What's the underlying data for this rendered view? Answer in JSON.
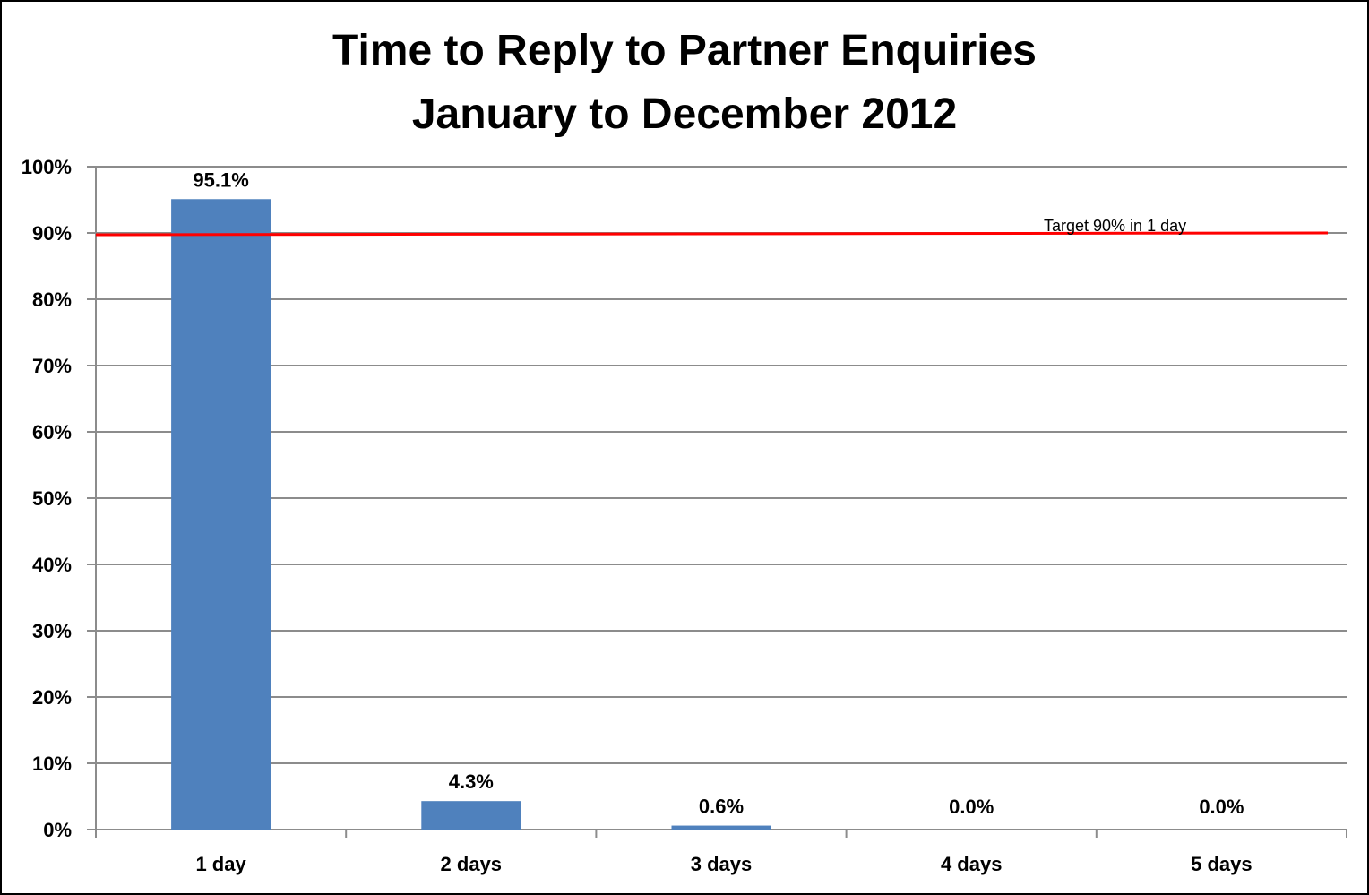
{
  "chart_data": {
    "type": "bar",
    "title": [
      "Time to Reply to Partner Enquiries",
      "January to December 2012"
    ],
    "categories": [
      "1 day",
      "2 days",
      "3 days",
      "4 days",
      "5 days"
    ],
    "values": [
      95.1,
      4.3,
      0.6,
      0.0,
      0.0
    ],
    "data_labels": [
      "95.1%",
      "4.3%",
      "0.6%",
      "0.0%",
      "0.0%"
    ],
    "ylim": [
      0,
      100
    ],
    "yticks": [
      0,
      10,
      20,
      30,
      40,
      50,
      60,
      70,
      80,
      90,
      100
    ],
    "ytick_labels": [
      "0%",
      "10%",
      "20%",
      "30%",
      "40%",
      "50%",
      "60%",
      "70%",
      "80%",
      "90%",
      "100%"
    ],
    "grid": true,
    "target": {
      "value": 90,
      "label": "Target 90% in 1 day",
      "color": "#FF0000"
    },
    "colors": {
      "bar": "#4F81BD",
      "grid": "#8C8C8C"
    }
  }
}
